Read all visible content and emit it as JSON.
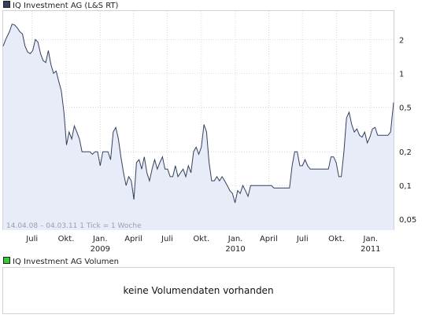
{
  "legend": {
    "price_label": "IQ Investment AG (L&S RT)",
    "price_color": "#34405e",
    "volume_label": "IQ Investment AG Volumen",
    "volume_color": "#33cc33"
  },
  "footer": {
    "range_label": "14.04.08 – 04.03.11",
    "tick_label": "1 Tick = 1 Woche"
  },
  "volume": {
    "message": "keine Volumendaten vorhanden"
  },
  "chart_data": {
    "type": "area",
    "title": "IQ Investment AG (L&S RT)",
    "y_scale": "log",
    "ylim": [
      0.04,
      3.6
    ],
    "grid": true,
    "line_color": "#34405e",
    "fill_color": "#e8ecf8",
    "y_ticks": [
      {
        "label": "2",
        "value": 2
      },
      {
        "label": "1",
        "value": 1
      },
      {
        "label": "0,5",
        "value": 0.5
      },
      {
        "label": "0,2",
        "value": 0.2
      },
      {
        "label": "0,1",
        "value": 0.1
      },
      {
        "label": "0,05",
        "value": 0.05
      }
    ],
    "x_range": [
      "2008-04-14",
      "2011-03-04"
    ],
    "x_ticks": [
      {
        "date": "2008-07-01",
        "label": "Juli",
        "year": ""
      },
      {
        "date": "2008-10-01",
        "label": "Okt.",
        "year": ""
      },
      {
        "date": "2009-01-01",
        "label": "Jan.",
        "year": "2009"
      },
      {
        "date": "2009-04-01",
        "label": "April",
        "year": ""
      },
      {
        "date": "2009-07-01",
        "label": "Juli",
        "year": ""
      },
      {
        "date": "2009-10-01",
        "label": "Okt.",
        "year": ""
      },
      {
        "date": "2010-01-01",
        "label": "Jan.",
        "year": "2010"
      },
      {
        "date": "2010-04-01",
        "label": "April",
        "year": ""
      },
      {
        "date": "2010-07-01",
        "label": "Juli",
        "year": ""
      },
      {
        "date": "2010-10-01",
        "label": "Okt.",
        "year": ""
      },
      {
        "date": "2011-01-01",
        "label": "Jan.",
        "year": "2011"
      }
    ],
    "series": [
      {
        "points": [
          [
            "2008-04-14",
            1.75
          ],
          [
            "2008-04-22",
            2.05
          ],
          [
            "2008-05-01",
            2.35
          ],
          [
            "2008-05-08",
            2.75
          ],
          [
            "2008-05-15",
            2.7
          ],
          [
            "2008-05-22",
            2.55
          ],
          [
            "2008-05-29",
            2.35
          ],
          [
            "2008-06-05",
            2.25
          ],
          [
            "2008-06-12",
            1.75
          ],
          [
            "2008-06-19",
            1.55
          ],
          [
            "2008-06-26",
            1.5
          ],
          [
            "2008-07-03",
            1.6
          ],
          [
            "2008-07-10",
            2.0
          ],
          [
            "2008-07-17",
            1.9
          ],
          [
            "2008-07-24",
            1.5
          ],
          [
            "2008-07-31",
            1.3
          ],
          [
            "2008-08-07",
            1.25
          ],
          [
            "2008-08-14",
            1.6
          ],
          [
            "2008-08-21",
            1.2
          ],
          [
            "2008-08-28",
            1.0
          ],
          [
            "2008-09-04",
            1.05
          ],
          [
            "2008-09-11",
            0.85
          ],
          [
            "2008-09-18",
            0.7
          ],
          [
            "2008-09-25",
            0.45
          ],
          [
            "2008-10-02",
            0.23
          ],
          [
            "2008-10-09",
            0.3
          ],
          [
            "2008-10-16",
            0.26
          ],
          [
            "2008-10-23",
            0.34
          ],
          [
            "2008-10-30",
            0.3
          ],
          [
            "2008-11-06",
            0.26
          ],
          [
            "2008-11-13",
            0.2
          ],
          [
            "2008-11-20",
            0.2
          ],
          [
            "2008-11-27",
            0.2
          ],
          [
            "2008-12-04",
            0.2
          ],
          [
            "2008-12-11",
            0.19
          ],
          [
            "2008-12-18",
            0.2
          ],
          [
            "2008-12-25",
            0.2
          ],
          [
            "2009-01-01",
            0.15
          ],
          [
            "2009-01-08",
            0.2
          ],
          [
            "2009-01-15",
            0.2
          ],
          [
            "2009-01-22",
            0.2
          ],
          [
            "2009-01-29",
            0.17
          ],
          [
            "2009-02-05",
            0.3
          ],
          [
            "2009-02-12",
            0.33
          ],
          [
            "2009-02-19",
            0.26
          ],
          [
            "2009-02-26",
            0.18
          ],
          [
            "2009-03-05",
            0.13
          ],
          [
            "2009-03-12",
            0.1
          ],
          [
            "2009-03-19",
            0.12
          ],
          [
            "2009-03-26",
            0.11
          ],
          [
            "2009-04-02",
            0.075
          ],
          [
            "2009-04-09",
            0.16
          ],
          [
            "2009-04-16",
            0.17
          ],
          [
            "2009-04-23",
            0.14
          ],
          [
            "2009-04-30",
            0.18
          ],
          [
            "2009-05-07",
            0.13
          ],
          [
            "2009-05-14",
            0.11
          ],
          [
            "2009-05-21",
            0.14
          ],
          [
            "2009-05-28",
            0.17
          ],
          [
            "2009-06-04",
            0.14
          ],
          [
            "2009-06-11",
            0.16
          ],
          [
            "2009-06-18",
            0.18
          ],
          [
            "2009-06-25",
            0.14
          ],
          [
            "2009-07-02",
            0.14
          ],
          [
            "2009-07-09",
            0.12
          ],
          [
            "2009-07-16",
            0.12
          ],
          [
            "2009-07-23",
            0.15
          ],
          [
            "2009-07-30",
            0.12
          ],
          [
            "2009-08-06",
            0.13
          ],
          [
            "2009-08-13",
            0.14
          ],
          [
            "2009-08-20",
            0.12
          ],
          [
            "2009-08-27",
            0.15
          ],
          [
            "2009-09-03",
            0.13
          ],
          [
            "2009-09-10",
            0.2
          ],
          [
            "2009-09-17",
            0.22
          ],
          [
            "2009-09-24",
            0.19
          ],
          [
            "2009-10-01",
            0.22
          ],
          [
            "2009-10-08",
            0.35
          ],
          [
            "2009-10-15",
            0.3
          ],
          [
            "2009-10-22",
            0.16
          ],
          [
            "2009-10-29",
            0.11
          ],
          [
            "2009-11-05",
            0.11
          ],
          [
            "2009-11-12",
            0.12
          ],
          [
            "2009-11-19",
            0.11
          ],
          [
            "2009-11-26",
            0.12
          ],
          [
            "2009-12-03",
            0.11
          ],
          [
            "2009-12-10",
            0.1
          ],
          [
            "2009-12-17",
            0.09
          ],
          [
            "2009-12-24",
            0.085
          ],
          [
            "2009-12-31",
            0.07
          ],
          [
            "2010-01-07",
            0.09
          ],
          [
            "2010-01-14",
            0.085
          ],
          [
            "2010-01-21",
            0.1
          ],
          [
            "2010-01-28",
            0.09
          ],
          [
            "2010-02-04",
            0.08
          ],
          [
            "2010-02-11",
            0.1
          ],
          [
            "2010-02-18",
            0.1
          ],
          [
            "2010-02-25",
            0.1
          ],
          [
            "2010-03-04",
            0.1
          ],
          [
            "2010-03-11",
            0.1
          ],
          [
            "2010-03-18",
            0.1
          ],
          [
            "2010-03-25",
            0.1
          ],
          [
            "2010-04-01",
            0.1
          ],
          [
            "2010-04-08",
            0.1
          ],
          [
            "2010-04-15",
            0.095
          ],
          [
            "2010-04-22",
            0.095
          ],
          [
            "2010-04-29",
            0.095
          ],
          [
            "2010-05-06",
            0.095
          ],
          [
            "2010-05-13",
            0.095
          ],
          [
            "2010-05-20",
            0.095
          ],
          [
            "2010-05-27",
            0.095
          ],
          [
            "2010-06-03",
            0.15
          ],
          [
            "2010-06-10",
            0.2
          ],
          [
            "2010-06-17",
            0.2
          ],
          [
            "2010-06-24",
            0.15
          ],
          [
            "2010-07-01",
            0.15
          ],
          [
            "2010-07-08",
            0.17
          ],
          [
            "2010-07-15",
            0.15
          ],
          [
            "2010-07-22",
            0.14
          ],
          [
            "2010-07-29",
            0.14
          ],
          [
            "2010-08-05",
            0.14
          ],
          [
            "2010-08-12",
            0.14
          ],
          [
            "2010-08-19",
            0.14
          ],
          [
            "2010-08-26",
            0.14
          ],
          [
            "2010-09-02",
            0.14
          ],
          [
            "2010-09-09",
            0.14
          ],
          [
            "2010-09-16",
            0.18
          ],
          [
            "2010-09-23",
            0.18
          ],
          [
            "2010-09-30",
            0.16
          ],
          [
            "2010-10-07",
            0.12
          ],
          [
            "2010-10-14",
            0.12
          ],
          [
            "2010-10-21",
            0.2
          ],
          [
            "2010-10-28",
            0.4
          ],
          [
            "2010-11-04",
            0.45
          ],
          [
            "2010-11-11",
            0.35
          ],
          [
            "2010-11-18",
            0.3
          ],
          [
            "2010-11-25",
            0.32
          ],
          [
            "2010-12-02",
            0.28
          ],
          [
            "2010-12-09",
            0.27
          ],
          [
            "2010-12-16",
            0.3
          ],
          [
            "2010-12-23",
            0.24
          ],
          [
            "2010-12-30",
            0.27
          ],
          [
            "2011-01-06",
            0.32
          ],
          [
            "2011-01-13",
            0.33
          ],
          [
            "2011-01-20",
            0.28
          ],
          [
            "2011-01-27",
            0.28
          ],
          [
            "2011-02-03",
            0.28
          ],
          [
            "2011-02-10",
            0.28
          ],
          [
            "2011-02-17",
            0.28
          ],
          [
            "2011-02-24",
            0.3
          ],
          [
            "2011-03-04",
            0.55
          ]
        ]
      }
    ]
  }
}
